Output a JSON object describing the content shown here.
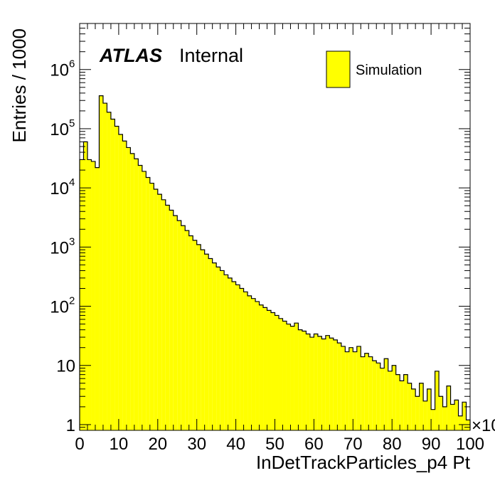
{
  "chart_data": {
    "type": "bar",
    "histogram": true,
    "log_y": true,
    "x_range": [
      0,
      100
    ],
    "y_range": [
      0.8,
      6000000
    ],
    "x_bin_width": 1,
    "x_tick_labels": [
      "0",
      "10",
      "20",
      "30",
      "40",
      "50",
      "60",
      "70",
      "80",
      "90",
      "100"
    ],
    "x_ticks": [
      0,
      10,
      20,
      30,
      40,
      50,
      60,
      70,
      80,
      90,
      100
    ],
    "x_multiplier_label": "×10",
    "y_tick_labels": [
      {
        "base": "1",
        "exp": ""
      },
      {
        "base": "10",
        "exp": ""
      },
      {
        "base": "10",
        "exp": "2"
      },
      {
        "base": "10",
        "exp": "3"
      },
      {
        "base": "10",
        "exp": "4"
      },
      {
        "base": "10",
        "exp": "5"
      },
      {
        "base": "10",
        "exp": "6"
      }
    ],
    "y_ticks": [
      1,
      10,
      100,
      1000,
      10000,
      100000,
      1000000
    ],
    "xlabel": "InDetTrackParticles_p4 Pt",
    "ylabel": "Entries / 1000",
    "fill_color": "#ffff00",
    "line_color": "#000000",
    "series": [
      {
        "name": "Simulation",
        "values": [
          30000,
          60000,
          30000,
          28000,
          22000,
          360000,
          270000,
          190000,
          145000,
          110000,
          80000,
          62000,
          48000,
          38000,
          31000,
          24000,
          19000,
          15000,
          12000,
          9500,
          7800,
          6300,
          5100,
          4200,
          3400,
          2800,
          2300,
          1900,
          1550,
          1300,
          1100,
          900,
          760,
          640,
          540,
          460,
          400,
          340,
          300,
          260,
          230,
          200,
          175,
          150,
          135,
          120,
          105,
          95,
          85,
          78,
          70,
          62,
          56,
          50,
          46,
          52,
          40,
          38,
          34,
          30,
          34,
          31,
          28,
          32,
          29,
          27,
          24,
          21,
          17,
          20,
          17,
          21,
          14,
          16,
          14,
          12,
          11,
          9,
          13,
          8,
          10,
          7,
          5.5,
          7,
          5,
          4,
          3,
          5,
          2.5,
          4,
          1.8,
          8,
          3,
          2,
          4.5,
          2.2,
          2.6,
          1.4,
          2.4,
          1.2
        ]
      }
    ],
    "annotations": {
      "atlas": "ATLAS",
      "internal": "Internal"
    },
    "legend": {
      "placement": "top-right",
      "entries": [
        "Simulation"
      ]
    }
  }
}
